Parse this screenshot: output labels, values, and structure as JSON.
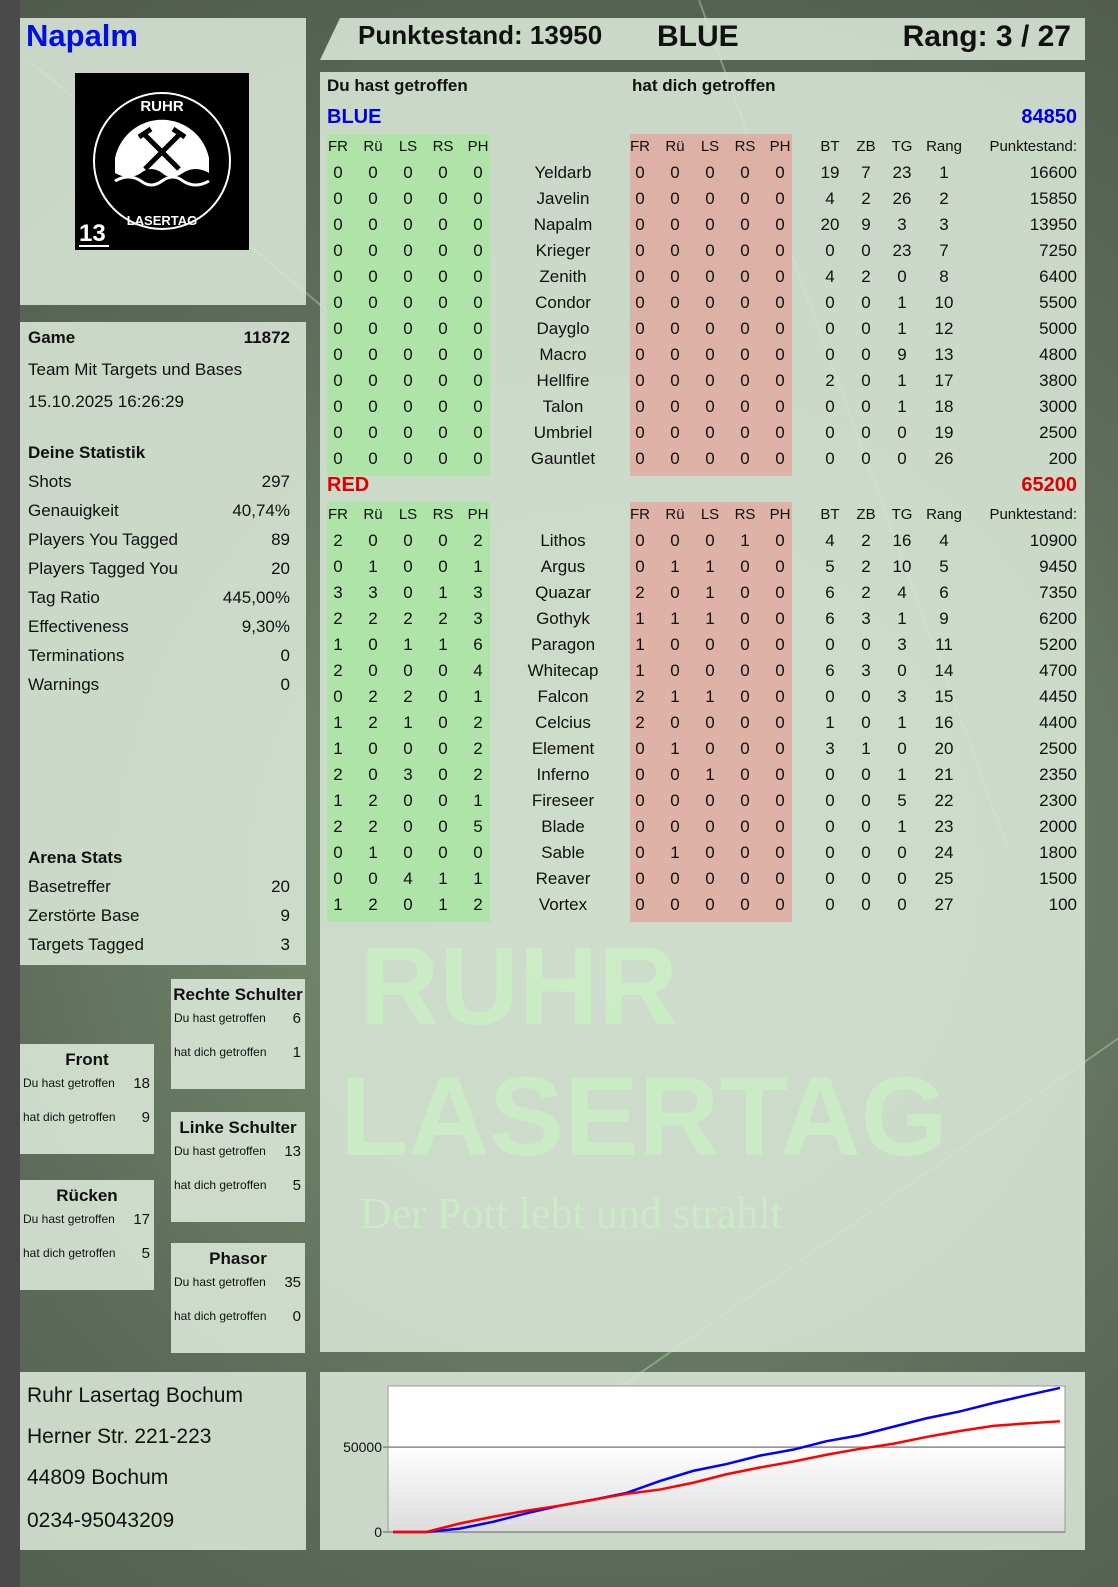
{
  "player": {
    "name": "Napalm",
    "logo_text_top": "RUHR",
    "logo_text_bottom": "LASERTAG",
    "logo_number": "13"
  },
  "header": {
    "score_label": "Punktestand: 13950",
    "team": "BLUE",
    "rank_label": "Rang: 3 / 27"
  },
  "colors": {
    "blue": "#0000dd",
    "red": "#dd0000",
    "hit_green": "#a8e6a0",
    "got_red": "#e0aaa0"
  },
  "game": {
    "label": "Game",
    "id": "11872",
    "mode": "Team Mit Targets und Bases",
    "datetime": "15.10.2025 16:26:29"
  },
  "stats": {
    "title": "Deine Statistik",
    "rows": [
      {
        "label": "Shots",
        "value": "297"
      },
      {
        "label": "Genauigkeit",
        "value": "40,74%"
      },
      {
        "label": "Players You Tagged",
        "value": "89"
      },
      {
        "label": "Players Tagged You",
        "value": "20"
      },
      {
        "label": "Tag Ratio",
        "value": "445,00%"
      },
      {
        "label": "Effectiveness",
        "value": "9,30%"
      },
      {
        "label": "Terminations",
        "value": "0"
      },
      {
        "label": "Warnings",
        "value": "0"
      }
    ]
  },
  "arena": {
    "title": "Arena Stats",
    "rows": [
      {
        "label": "Basetreffer",
        "value": "20"
      },
      {
        "label": "Zerstörte Base",
        "value": "9"
      },
      {
        "label": "Targets Tagged",
        "value": "3"
      }
    ]
  },
  "zones": [
    {
      "title": "Rechte Schulter",
      "hit_label": "Du hast getroffen",
      "hit": "6",
      "got_label": "hat dich getroffen",
      "got": "1"
    },
    {
      "title": "Front",
      "hit_label": "Du hast getroffen",
      "hit": "18",
      "got_label": "hat dich getroffen",
      "got": "9"
    },
    {
      "title": "Linke Schulter",
      "hit_label": "Du hast getroffen",
      "hit": "13",
      "got_label": "hat dich getroffen",
      "got": "5"
    },
    {
      "title": "Rücken",
      "hit_label": "Du hast getroffen",
      "hit": "17",
      "got_label": "hat dich getroffen",
      "got": "5"
    },
    {
      "title": "Phasor",
      "hit_label": "Du hast getroffen",
      "hit": "35",
      "got_label": "hat dich getroffen",
      "got": "0"
    }
  ],
  "address": {
    "lines": [
      "Ruhr Lasertag Bochum",
      "Herner Str. 221-223",
      "44809 Bochum",
      "0234-95043209"
    ]
  },
  "main": {
    "you_hit": "Du hast getroffen",
    "hit_you": "hat dich getroffen",
    "columns": {
      "hit": [
        "FR",
        "Rü",
        "LS",
        "RS",
        "PH"
      ],
      "got": [
        "FR",
        "Rü",
        "LS",
        "RS",
        "PH"
      ],
      "extra": [
        "BT",
        "ZB",
        "TG",
        "Rang"
      ],
      "score": "Punktestand:"
    },
    "teams": [
      {
        "name": "BLUE",
        "total": "84850",
        "players": [
          [
            "Yeldarb",
            [
              0,
              0,
              0,
              0,
              0
            ],
            [
              0,
              0,
              0,
              0,
              0
            ],
            [
              19,
              7,
              23,
              1
            ],
            16600
          ],
          [
            "Javelin",
            [
              0,
              0,
              0,
              0,
              0
            ],
            [
              0,
              0,
              0,
              0,
              0
            ],
            [
              4,
              2,
              26,
              2
            ],
            15850
          ],
          [
            "Napalm",
            [
              0,
              0,
              0,
              0,
              0
            ],
            [
              0,
              0,
              0,
              0,
              0
            ],
            [
              20,
              9,
              3,
              3
            ],
            13950
          ],
          [
            "Krieger",
            [
              0,
              0,
              0,
              0,
              0
            ],
            [
              0,
              0,
              0,
              0,
              0
            ],
            [
              0,
              0,
              23,
              7
            ],
            7250
          ],
          [
            "Zenith",
            [
              0,
              0,
              0,
              0,
              0
            ],
            [
              0,
              0,
              0,
              0,
              0
            ],
            [
              4,
              2,
              0,
              8
            ],
            6400
          ],
          [
            "Condor",
            [
              0,
              0,
              0,
              0,
              0
            ],
            [
              0,
              0,
              0,
              0,
              0
            ],
            [
              0,
              0,
              1,
              10
            ],
            5500
          ],
          [
            "Dayglo",
            [
              0,
              0,
              0,
              0,
              0
            ],
            [
              0,
              0,
              0,
              0,
              0
            ],
            [
              0,
              0,
              1,
              12
            ],
            5000
          ],
          [
            "Macro",
            [
              0,
              0,
              0,
              0,
              0
            ],
            [
              0,
              0,
              0,
              0,
              0
            ],
            [
              0,
              0,
              9,
              13
            ],
            4800
          ],
          [
            "Hellfire",
            [
              0,
              0,
              0,
              0,
              0
            ],
            [
              0,
              0,
              0,
              0,
              0
            ],
            [
              2,
              0,
              1,
              17
            ],
            3800
          ],
          [
            "Talon",
            [
              0,
              0,
              0,
              0,
              0
            ],
            [
              0,
              0,
              0,
              0,
              0
            ],
            [
              0,
              0,
              1,
              18
            ],
            3000
          ],
          [
            "Umbriel",
            [
              0,
              0,
              0,
              0,
              0
            ],
            [
              0,
              0,
              0,
              0,
              0
            ],
            [
              0,
              0,
              0,
              19
            ],
            2500
          ],
          [
            "Gauntlet",
            [
              0,
              0,
              0,
              0,
              0
            ],
            [
              0,
              0,
              0,
              0,
              0
            ],
            [
              0,
              0,
              0,
              26
            ],
            200
          ]
        ]
      },
      {
        "name": "RED",
        "total": "65200",
        "players": [
          [
            "Lithos",
            [
              2,
              0,
              0,
              0,
              2
            ],
            [
              0,
              0,
              0,
              1,
              0
            ],
            [
              4,
              2,
              16,
              4
            ],
            10900
          ],
          [
            "Argus",
            [
              0,
              1,
              0,
              0,
              1
            ],
            [
              0,
              1,
              1,
              0,
              0
            ],
            [
              5,
              2,
              10,
              5
            ],
            9450
          ],
          [
            "Quazar",
            [
              3,
              3,
              0,
              1,
              3
            ],
            [
              2,
              0,
              1,
              0,
              0
            ],
            [
              6,
              2,
              4,
              6
            ],
            7350
          ],
          [
            "Gothyk",
            [
              2,
              2,
              2,
              2,
              3
            ],
            [
              1,
              1,
              1,
              0,
              0
            ],
            [
              6,
              3,
              1,
              9
            ],
            6200
          ],
          [
            "Paragon",
            [
              1,
              0,
              1,
              1,
              6
            ],
            [
              1,
              0,
              0,
              0,
              0
            ],
            [
              0,
              0,
              3,
              11
            ],
            5200
          ],
          [
            "Whitecap",
            [
              2,
              0,
              0,
              0,
              4
            ],
            [
              1,
              0,
              0,
              0,
              0
            ],
            [
              6,
              3,
              0,
              14
            ],
            4700
          ],
          [
            "Falcon",
            [
              0,
              2,
              2,
              0,
              1
            ],
            [
              2,
              1,
              1,
              0,
              0
            ],
            [
              0,
              0,
              3,
              15
            ],
            4450
          ],
          [
            "Celcius",
            [
              1,
              2,
              1,
              0,
              2
            ],
            [
              2,
              0,
              0,
              0,
              0
            ],
            [
              1,
              0,
              1,
              16
            ],
            4400
          ],
          [
            "Element",
            [
              1,
              0,
              0,
              0,
              2
            ],
            [
              0,
              1,
              0,
              0,
              0
            ],
            [
              3,
              1,
              0,
              20
            ],
            2500
          ],
          [
            "Inferno",
            [
              2,
              0,
              3,
              0,
              2
            ],
            [
              0,
              0,
              1,
              0,
              0
            ],
            [
              0,
              0,
              1,
              21
            ],
            2350
          ],
          [
            "Fireseer",
            [
              1,
              2,
              0,
              0,
              1
            ],
            [
              0,
              0,
              0,
              0,
              0
            ],
            [
              0,
              0,
              5,
              22
            ],
            2300
          ],
          [
            "Blade",
            [
              2,
              2,
              0,
              0,
              5
            ],
            [
              0,
              0,
              0,
              0,
              0
            ],
            [
              0,
              0,
              1,
              23
            ],
            2000
          ],
          [
            "Sable",
            [
              0,
              1,
              0,
              0,
              0
            ],
            [
              0,
              1,
              0,
              0,
              0
            ],
            [
              0,
              0,
              0,
              24
            ],
            1800
          ],
          [
            "Reaver",
            [
              0,
              0,
              4,
              1,
              1
            ],
            [
              0,
              0,
              0,
              0,
              0
            ],
            [
              0,
              0,
              0,
              25
            ],
            1500
          ],
          [
            "Vortex",
            [
              1,
              2,
              0,
              1,
              2
            ],
            [
              0,
              0,
              0,
              0,
              0
            ],
            [
              0,
              0,
              0,
              27
            ],
            100
          ]
        ]
      }
    ]
  },
  "watermark": {
    "line1": "RUHR",
    "line2": "LASERTAG",
    "line3": "Der Pott lebt und strahlt"
  },
  "chart_data": {
    "type": "line",
    "ylim": [
      0,
      86000
    ],
    "yticks": [
      0,
      50000
    ],
    "ytick_labels": [
      "0",
      "50000"
    ],
    "grid": true,
    "x": [
      0,
      5,
      10,
      15,
      20,
      25,
      30,
      35,
      40,
      45,
      50,
      55,
      60,
      65,
      70,
      75,
      80,
      85,
      90,
      95,
      100
    ],
    "series": [
      {
        "color": "#0000ff",
        "values": [
          0,
          0,
          2000,
          6000,
          11000,
          15500,
          19000,
          23000,
          30000,
          36000,
          40000,
          45000,
          48500,
          53500,
          57000,
          62000,
          67000,
          71000,
          76000,
          80500,
          84850
        ]
      },
      {
        "color": "#ff0000",
        "values": [
          0,
          0,
          5000,
          9000,
          12500,
          15500,
          19000,
          22500,
          25000,
          29000,
          34000,
          38000,
          41500,
          45500,
          49000,
          52000,
          56000,
          59500,
          62500,
          64000,
          65200
        ]
      }
    ]
  }
}
